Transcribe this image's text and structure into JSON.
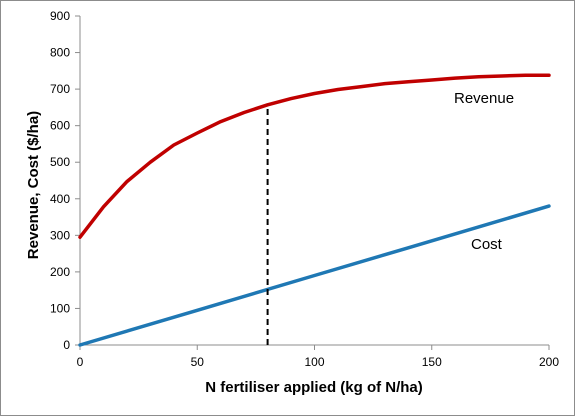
{
  "chart_data": {
    "type": "line",
    "title": "",
    "xlabel": "N fertiliser applied (kg of N/ha)",
    "ylabel": "Revenue, Cost  ($/ha)",
    "xlim": [
      0,
      200
    ],
    "ylim": [
      0,
      900
    ],
    "x_ticks": [
      "0",
      "50",
      "100",
      "150",
      "200"
    ],
    "y_ticks": [
      "0",
      "100",
      "200",
      "300",
      "400",
      "500",
      "600",
      "700",
      "800",
      "900"
    ],
    "grid": false,
    "legend": "none",
    "series": [
      {
        "name": "Revenue",
        "color": "#c00000",
        "x": [
          0,
          10,
          20,
          30,
          40,
          50,
          60,
          70,
          80,
          90,
          100,
          110,
          120,
          130,
          140,
          150,
          160,
          170,
          180,
          190,
          200
        ],
        "y": [
          295,
          378,
          447,
          500,
          547,
          580,
          611,
          636,
          657,
          674,
          688,
          699,
          707,
          715,
          720,
          725,
          730,
          734,
          736,
          738,
          738
        ]
      },
      {
        "name": "Cost",
        "color": "#1f78b4",
        "x": [
          0,
          50,
          100,
          130,
          140,
          200
        ],
        "y": [
          0,
          95,
          190,
          247,
          266,
          380
        ]
      }
    ],
    "reference_line": {
      "x": 80,
      "y_from": 0,
      "y_to": 657,
      "style": "dashed",
      "color": "#000000"
    }
  }
}
